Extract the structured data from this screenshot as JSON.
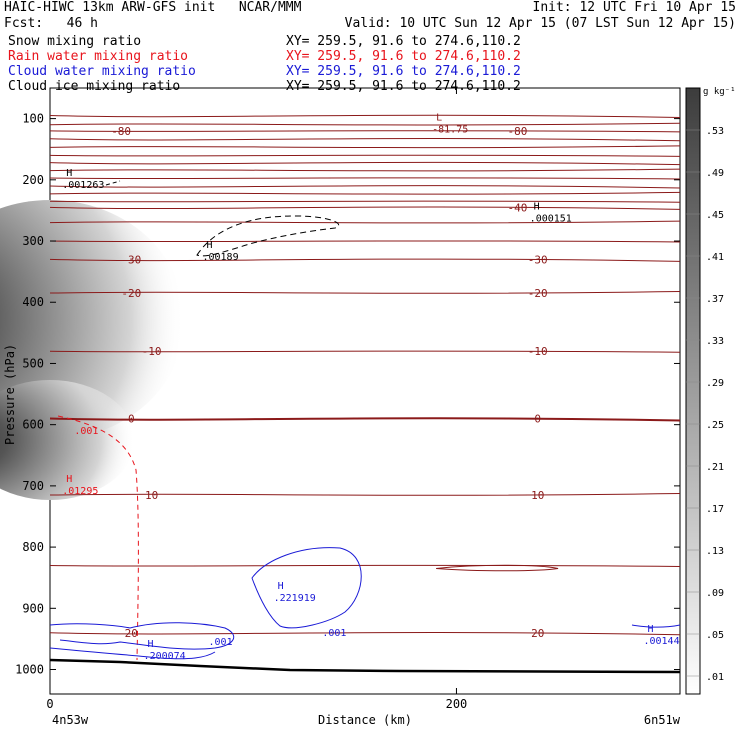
{
  "header": {
    "title_left": "HAIC-HIWC 13km ARW-GFS init",
    "org": "NCAR/MMM",
    "init": "Init: 12 UTC Fri 10 Apr 15",
    "fcst_label": "Fcst:",
    "fcst_value": "46 h",
    "valid": "Valid: 10 UTC Sun 12 Apr 15 (07 LST Sun 12 Apr 15)"
  },
  "fields": [
    {
      "name": "Snow mixing ratio",
      "color": "#000000",
      "xy": "XY= 259.5, 91.6 to 274.6,110.2"
    },
    {
      "name": "Rain water mixing ratio",
      "color": "#e8141c",
      "xy": "XY= 259.5, 91.6 to 274.6,110.2"
    },
    {
      "name": "Cloud water mixing ratio",
      "color": "#1a1ad6",
      "xy": "XY= 259.5, 91.6 to 274.6,110.2"
    },
    {
      "name": "Cloud ice mixing ratio",
      "color": "#000000",
      "xy": "XY= 259.5, 91.6 to 274.6,110.2"
    }
  ],
  "chart_data": {
    "type": "contour",
    "xlabel": "Distance (km)",
    "ylabel": "Pressure (hPa)",
    "xlim": [
      0,
      310
    ],
    "ylim": [
      1040,
      50
    ],
    "x_ticks": [
      0,
      200
    ],
    "y_ticks": [
      100,
      200,
      300,
      400,
      500,
      600,
      700,
      800,
      900,
      1000
    ],
    "x_endpoints": {
      "left": "4n53w",
      "right": "6n51w"
    },
    "colorbar": {
      "unit": "g kg⁻¹",
      "levels": [
        ".01",
        ".05",
        ".09",
        ".13",
        ".17",
        ".21",
        ".25",
        ".29",
        ".33",
        ".37",
        ".41",
        ".45",
        ".49",
        ".53"
      ]
    },
    "temperature_contours": [
      {
        "label": "-80",
        "p": 120
      },
      {
        "label": "-40",
        "p": 245
      },
      {
        "label": "-30",
        "p": 330
      },
      {
        "label": "-20",
        "p": 385
      },
      {
        "label": "-10",
        "p": 480
      },
      {
        "label": "0",
        "p": 590
      },
      {
        "label": "10",
        "p": 715
      },
      {
        "label": "20",
        "p": 940
      }
    ],
    "extrema_labels": [
      {
        "kind": "L",
        "value": "-81.75",
        "x": 190,
        "p": 110,
        "color": "#8b1a1a"
      },
      {
        "kind": "H",
        "value": ".001263",
        "x": 8,
        "p": 200,
        "color": "#000000"
      },
      {
        "kind": "H",
        "value": ".000151",
        "x": 238,
        "p": 255,
        "color": "#000000"
      },
      {
        "kind": "H",
        "value": ".00189",
        "x": 77,
        "p": 318,
        "color": "#000000"
      },
      {
        "kind": "H",
        "value": ".01295",
        "x": 8,
        "p": 700,
        "color": "#e8141c"
      },
      {
        "kind": "H",
        "value": ".221919",
        "x": 112,
        "p": 875,
        "color": "#1a1ad6"
      },
      {
        "kind": "H",
        "value": ".200074",
        "x": 48,
        "p": 970,
        "color": "#1a1ad6"
      },
      {
        "kind": "H",
        "value": ".00144",
        "x": 294,
        "p": 945,
        "color": "#1a1ad6"
      }
    ],
    "contour_value_labels": [
      {
        "value": ".001",
        "x": 12,
        "p": 615,
        "color": "#e8141c"
      },
      {
        "value": ".001",
        "x": 78,
        "p": 960,
        "color": "#1a1ad6"
      },
      {
        "value": ".001",
        "x": 134,
        "p": 945,
        "color": "#1a1ad6"
      }
    ]
  }
}
